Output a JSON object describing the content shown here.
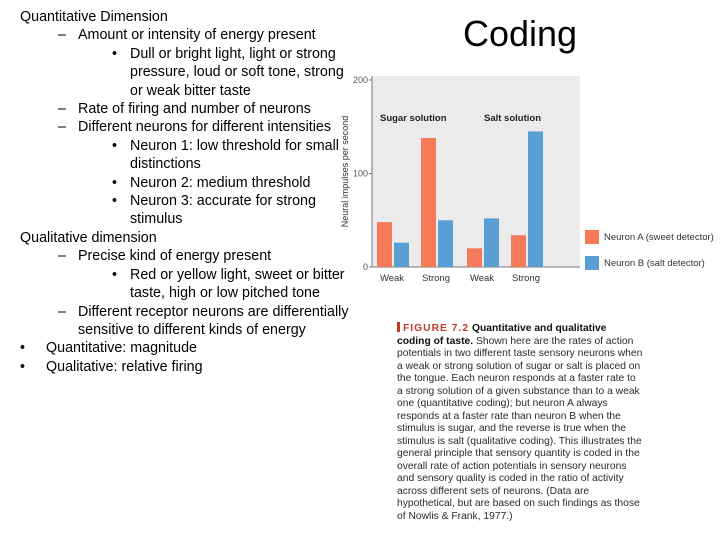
{
  "slide": {
    "title": "Coding",
    "bullets": [
      {
        "level": 0,
        "text": "Quantitative Dimension"
      },
      {
        "level": 1,
        "text": "Amount or intensity of energy present"
      },
      {
        "level": 2,
        "text": "Dull or bright light, light or strong pressure, loud or soft tone, strong or weak bitter taste"
      },
      {
        "level": 1,
        "text": "Rate of firing and number of neurons"
      },
      {
        "level": 1,
        "text": "Different neurons for different intensities"
      },
      {
        "level": 2,
        "text": "Neuron 1: low threshold for small distinctions"
      },
      {
        "level": 2,
        "text": "Neuron 2: medium threshold"
      },
      {
        "level": 2,
        "text": "Neuron 3: accurate for strong stimulus"
      },
      {
        "level": 0,
        "text": "Qualitative dimension"
      },
      {
        "level": 1,
        "text": "Precise kind of energy present"
      },
      {
        "level": 2,
        "text": "Red or yellow light, sweet or bitter taste, high or low pitched tone"
      },
      {
        "level": 1,
        "text": "Different receptor neurons are differentially sensitive to different kinds of energy"
      },
      {
        "level": "b",
        "text": "Quantitative: magnitude"
      },
      {
        "level": "b",
        "text": "Qualitative: relative firing"
      }
    ],
    "dash_glyph": "–",
    "dot_glyph": "•"
  },
  "chart_data": {
    "type": "bar",
    "ylabel": "Neural impulses per second",
    "ylim": [
      0,
      200
    ],
    "yticks": [
      0,
      100,
      200
    ],
    "groups": [
      "Sugar solution",
      "Salt solution"
    ],
    "categories": [
      "Weak",
      "Strong",
      "Weak",
      "Strong"
    ],
    "series": [
      {
        "name": "Neuron A (sweet detector)",
        "values": [
          48,
          138,
          20,
          34
        ]
      },
      {
        "name": "Neuron B (salt detector)",
        "values": [
          26,
          50,
          52,
          145
        ]
      }
    ],
    "colors": {
      "neuron_a": "#f47a5a",
      "neuron_b": "#5a9fd4",
      "panel": "#ebebeb"
    }
  },
  "caption": {
    "figure_label": "FIGURE 7.2",
    "title": "Quantitative and qualitative coding of taste.",
    "body": "Shown here are the rates of action potentials in two different taste sensory neurons when a weak or strong solution of sugar or salt is placed on the tongue. Each neuron responds at a faster rate to a strong solution of a given substance than to a weak one (quantitative coding); but neuron A always responds at a faster rate than neuron B when the stimulus is sugar, and the reverse is true when the stimulus is salt (qualitative coding). This illustrates the general principle that sensory quantity is coded in the overall rate of action potentials in sensory neurons and sensory quality is coded in the ratio of activity across different sets of neurons. (Data are hypothetical, but are based on such findings as those of Nowlis & Frank, 1977.)"
  }
}
